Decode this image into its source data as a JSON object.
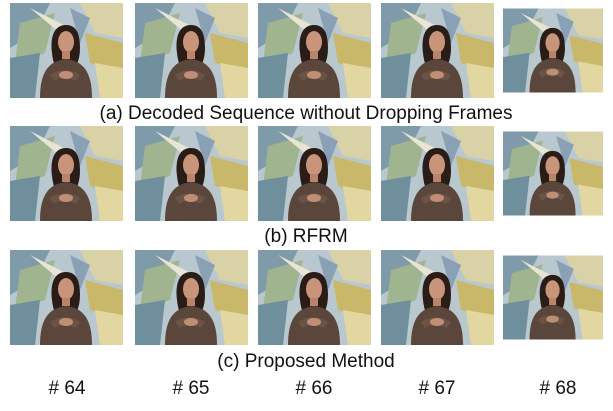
{
  "rows": [
    {
      "caption": "(a) Decoded Sequence without Dropping Frames"
    },
    {
      "caption": "(b) RFRM"
    },
    {
      "caption": "(c) Proposed Method"
    }
  ],
  "frame_numbers": [
    "# 64",
    "# 65",
    "# 66",
    "# 67",
    "# 68"
  ]
}
